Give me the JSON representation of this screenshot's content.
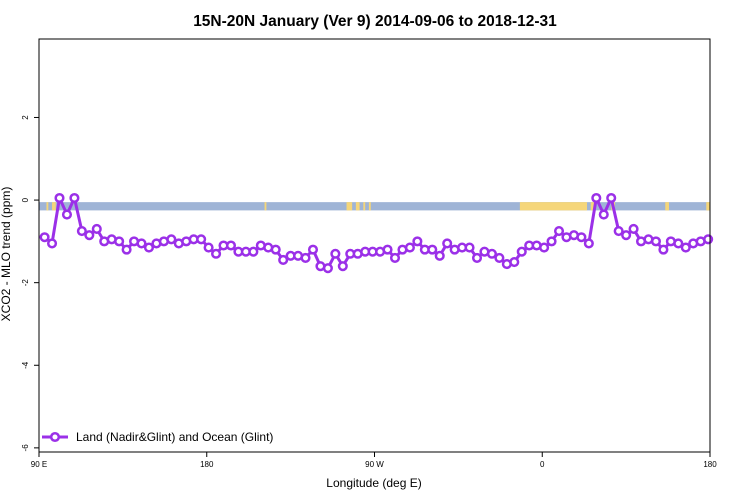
{
  "chart_data": {
    "type": "line",
    "title": "15N-20N January (Ver 9)   2014-09-06 to 2018-12-31",
    "xlabel": "Longitude (deg E)",
    "ylabel": "XCO2 - MLO trend (ppm)",
    "xlim": [
      90,
      450
    ],
    "ylim": [
      -6.1,
      3.9
    ],
    "x_ticks": [
      {
        "value": 90,
        "label": "90 E"
      },
      {
        "value": 180,
        "label": "180"
      },
      {
        "value": 270,
        "label": "90 W"
      },
      {
        "value": 360,
        "label": "0"
      },
      {
        "value": 450,
        "label": "180"
      }
    ],
    "y_ticks": [
      {
        "value": 2,
        "label": "2"
      },
      {
        "value": 0,
        "label": "0"
      },
      {
        "value": -2,
        "label": "-2"
      },
      {
        "value": -4,
        "label": "-4"
      },
      {
        "value": -6,
        "label": "-6"
      }
    ],
    "grid": false,
    "legend_position": "bottom-left",
    "colors": {
      "series": "#9b30e8",
      "ocean_band": "#9fb4d6",
      "land_band": "#f5d67a"
    },
    "band": {
      "y_top": -0.05,
      "y_bottom": -0.25
    },
    "land_segments": [
      [
        94,
        95
      ],
      [
        97,
        99
      ],
      [
        211,
        212
      ],
      [
        255,
        258
      ],
      [
        260,
        262
      ],
      [
        264,
        265
      ],
      [
        267,
        268
      ],
      [
        348,
        384
      ],
      [
        386,
        388
      ],
      [
        397,
        399
      ],
      [
        426,
        428
      ],
      [
        448,
        450
      ]
    ],
    "series": [
      {
        "name": "Land (Nadir&Glint) and Ocean (Glint)",
        "x": [
          93,
          97,
          101,
          105,
          109,
          113,
          117,
          121,
          125,
          129,
          133,
          137,
          141,
          145,
          149,
          153,
          157,
          161,
          165,
          169,
          173,
          177,
          181,
          185,
          189,
          193,
          197,
          201,
          205,
          209,
          213,
          217,
          221,
          225,
          229,
          233,
          237,
          241,
          245,
          249,
          253,
          257,
          261,
          265,
          269,
          273,
          277,
          281,
          285,
          289,
          293,
          297,
          301,
          305,
          309,
          313,
          317,
          321,
          325,
          329,
          333,
          337,
          341,
          345,
          349,
          353,
          357,
          361,
          365,
          369,
          373,
          377,
          381,
          385,
          389,
          393,
          397,
          401,
          405,
          409,
          413,
          417,
          421,
          425,
          429,
          433,
          437,
          441,
          445,
          449
        ],
        "y": [
          -0.9,
          -1.05,
          0.05,
          -0.35,
          0.05,
          -0.75,
          -0.85,
          -0.7,
          -1.0,
          -0.95,
          -1.0,
          -1.2,
          -1.0,
          -1.05,
          -1.15,
          -1.05,
          -1.0,
          -0.95,
          -1.05,
          -1.0,
          -0.95,
          -0.95,
          -1.15,
          -1.3,
          -1.1,
          -1.1,
          -1.25,
          -1.25,
          -1.25,
          -1.1,
          -1.15,
          -1.2,
          -1.45,
          -1.35,
          -1.35,
          -1.4,
          -1.2,
          -1.6,
          -1.65,
          -1.3,
          -1.6,
          -1.3,
          -1.3,
          -1.25,
          -1.25,
          -1.25,
          -1.2,
          -1.4,
          -1.2,
          -1.15,
          -1.0,
          -1.2,
          -1.2,
          -1.35,
          -1.05,
          -1.2,
          -1.15,
          -1.15,
          -1.4,
          -1.25,
          -1.3,
          -1.4,
          -1.55,
          -1.5,
          -1.25,
          -1.1,
          -1.1,
          -1.15,
          -1.0,
          -0.75,
          -0.9,
          -0.85,
          -0.9,
          -1.05,
          0.05,
          -0.35,
          0.05,
          -0.75,
          -0.85,
          -0.7,
          -1.0,
          -0.95,
          -1.0,
          -1.2,
          -1.0,
          -1.05,
          -1.15,
          -1.05,
          -1.0,
          -0.95
        ]
      }
    ]
  }
}
